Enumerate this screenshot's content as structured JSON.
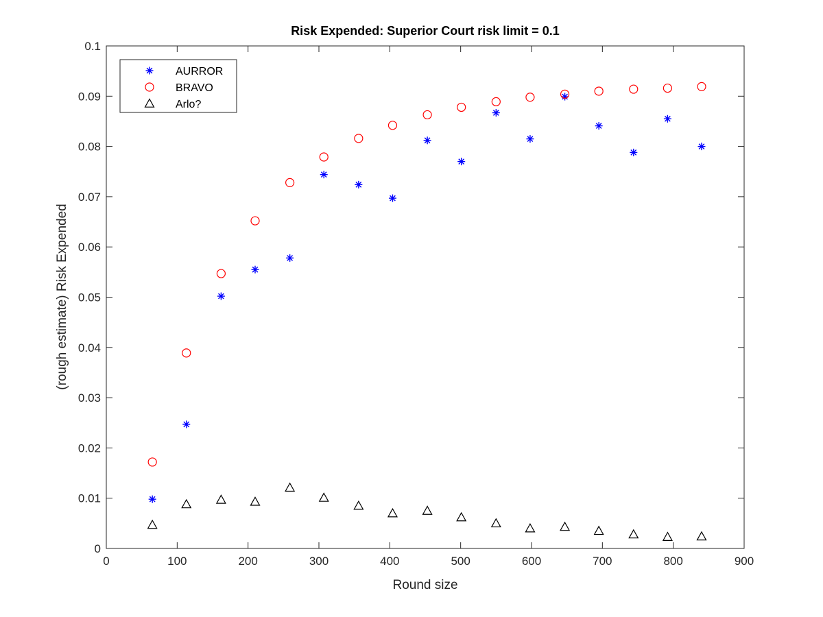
{
  "chart_data": {
    "type": "scatter",
    "title": "Risk Expended: Superior Court risk limit = 0.1",
    "xlabel": "Round size",
    "ylabel": "(rough estimate) Risk Expended",
    "xlim": [
      0,
      900
    ],
    "ylim": [
      0,
      0.1
    ],
    "xticks": [
      "0",
      "100",
      "200",
      "300",
      "400",
      "500",
      "600",
      "700",
      "800",
      "900"
    ],
    "yticks": [
      "0",
      "0.01",
      "0.02",
      "0.03",
      "0.04",
      "0.05",
      "0.06",
      "0.07",
      "0.08",
      "0.09",
      "0.1"
    ],
    "grid": false,
    "legend_position": "top-left",
    "x": [
      65,
      113,
      162,
      210,
      259,
      307,
      356,
      404,
      453,
      501,
      550,
      598,
      647,
      695,
      744,
      792,
      840
    ],
    "series": [
      {
        "name": "AURROR",
        "marker": "asterisk",
        "color": "#0000ff",
        "values": [
          0.0098,
          0.0247,
          0.0502,
          0.0555,
          0.0578,
          0.0744,
          0.0724,
          0.0697,
          0.0812,
          0.077,
          0.0867,
          0.0815,
          0.0899,
          0.0841,
          0.0788,
          0.0855,
          0.08
        ]
      },
      {
        "name": "BRAVO",
        "marker": "circle",
        "color": "#ff0000",
        "values": [
          0.0172,
          0.0389,
          0.0547,
          0.0652,
          0.0728,
          0.0779,
          0.0816,
          0.0842,
          0.0863,
          0.0878,
          0.0889,
          0.0898,
          0.0904,
          0.091,
          0.0914,
          0.0916,
          0.0919
        ]
      },
      {
        "name": "Arlo?",
        "marker": "triangle",
        "color": "#000000",
        "values": [
          0.0047,
          0.0088,
          0.0097,
          0.0093,
          0.0121,
          0.0101,
          0.0085,
          0.007,
          0.0075,
          0.0062,
          0.005,
          0.004,
          0.0043,
          0.0035,
          0.0028,
          0.0023,
          0.0024
        ]
      }
    ]
  }
}
